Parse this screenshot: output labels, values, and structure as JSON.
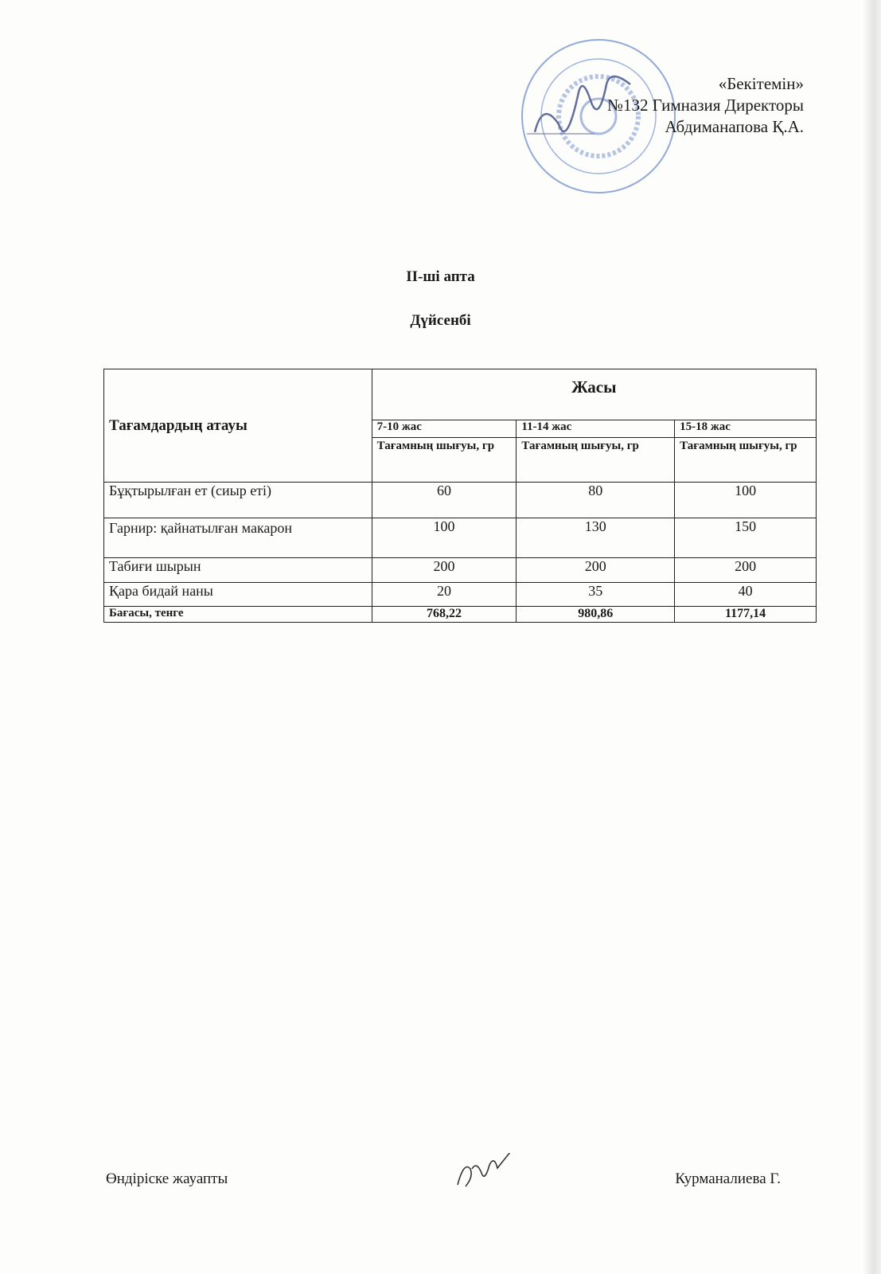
{
  "approval": {
    "line1": "«Бекітемін»",
    "line2": "№132 Гимназия Директоры",
    "line3": "Абдиманапова Қ.А."
  },
  "stamp": {
    "text": "АЛМАТЫ ҚАЛАСЫ БІЛІМ БАСҚАРМАСЫНЫҢ №132 ГИМНАЗИЯ КОММУНАЛДЫҚ МЕМЛЕКЕТТІК МЕКЕМЕСІ БСН 981140000847",
    "color": "#5a7fc0"
  },
  "heading": {
    "week": "ІІ-ші апта",
    "day": "Дүйсенбі"
  },
  "table": {
    "name_header": "Тағамдардың атауы",
    "age_header": "Жасы",
    "age_groups": [
      "7-10 жас",
      "11-14 жас",
      "15-18 жас"
    ],
    "unit_header": "Тағамның шығуы, гр",
    "rows": [
      {
        "name": "Бұқтырылған ет  (сиыр еті)",
        "values": [
          "60",
          "80",
          "100"
        ]
      },
      {
        "name": "Гарнир: қайнатылған макарон",
        "values": [
          "100",
          "130",
          "150"
        ]
      },
      {
        "name": "Табиғи шырын",
        "values": [
          "200",
          "200",
          "200"
        ]
      },
      {
        "name": "Қара бидай наны",
        "values": [
          "20",
          "35",
          "40"
        ]
      }
    ],
    "total": {
      "name": "Бағасы, тенге",
      "values": [
        "768,22",
        "980,86",
        "1177,14"
      ]
    }
  },
  "footer": {
    "left": "Өндіріске жауапты",
    "right": "Курманалиева Г."
  }
}
